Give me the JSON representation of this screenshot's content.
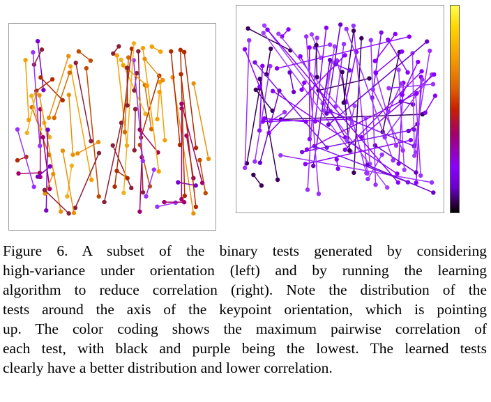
{
  "figure": {
    "caption_lines": [
      "Figure 6. A subset of the binary tests generated by considering",
      "high-variance under orientation (left) and by running the learning",
      "algorithm to reduce correlation (right). Note the distribution of the",
      "tests around the axis of the keypoint orientation, which is pointing",
      "up.  The color coding shows the maximum pairwise correlation of",
      "each test, with black and purple being the lowest.  The learned tests",
      "clearly have a better distribution and lower correlation."
    ],
    "colorbar_colors": [
      "#ffff4d",
      "#f5a000",
      "#c82000",
      "#8a00ff",
      "#000000"
    ]
  }
}
